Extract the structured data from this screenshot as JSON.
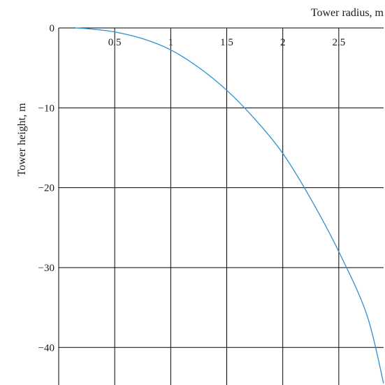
{
  "chart_data": {
    "type": "line",
    "title": "",
    "xlabel": "Tower radius, m",
    "ylabel": "Tower height, m",
    "xlim": [
      0,
      2.9
    ],
    "ylim": [
      -44.7,
      0
    ],
    "x_ticks": [
      0.5,
      1,
      1.5,
      2,
      2.5
    ],
    "x_tick_labels": [
      "0.5",
      "1",
      "1.5",
      "2",
      "2.5"
    ],
    "y_ticks": [
      0,
      -10,
      -20,
      -30,
      -40
    ],
    "y_tick_labels": [
      "0",
      "−10",
      "−20",
      "−30",
      "−40"
    ],
    "grid": true,
    "x_axis_position": "top",
    "series": [
      {
        "color": "#2f8fd0",
        "x": [
          0.15,
          0.3,
          0.5,
          0.75,
          1.0,
          1.25,
          1.5,
          1.75,
          2.0,
          2.25,
          2.5,
          2.75,
          2.9
        ],
        "y": [
          0,
          -0.15,
          -0.5,
          -1.35,
          -2.75,
          -4.95,
          -7.8,
          -11.4,
          -15.7,
          -21.4,
          -28.0,
          -35.9,
          -44.5
        ]
      }
    ]
  }
}
